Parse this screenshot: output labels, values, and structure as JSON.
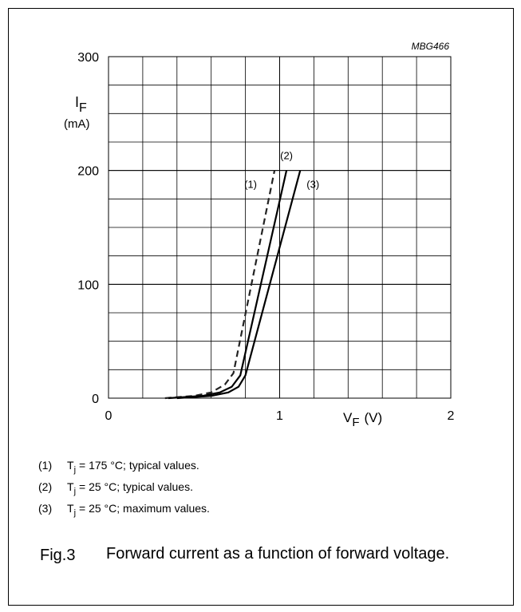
{
  "chart_data": {
    "type": "line",
    "annotation": "MBG466",
    "ylabel": "I",
    "ylabel_sub": "F",
    "ylabel_unit": "(mA)",
    "xlabel": "V",
    "xlabel_sub": "F",
    "xlabel_unit": "(V)",
    "xlim": [
      0,
      2
    ],
    "xticks": [
      0,
      1,
      2
    ],
    "ylim": [
      0,
      300
    ],
    "yticks": [
      0,
      100,
      200,
      300
    ],
    "grid": true,
    "series": [
      {
        "name": "(1)",
        "color": "#222222",
        "dashed": true,
        "x": [
          0.33,
          0.5,
          0.6,
          0.68,
          0.73,
          0.97
        ],
        "values": [
          0,
          2,
          5,
          12,
          22,
          200
        ]
      },
      {
        "name": "(2)",
        "color": "#000000",
        "dashed": false,
        "x": [
          0.35,
          0.55,
          0.65,
          0.72,
          0.77,
          1.04
        ],
        "values": [
          0,
          2,
          5,
          10,
          20,
          200
        ]
      },
      {
        "name": "(3)",
        "color": "#000000",
        "dashed": false,
        "x": [
          0.4,
          0.6,
          0.7,
          0.76,
          0.8,
          1.12
        ],
        "values": [
          0,
          2,
          5,
          10,
          20,
          200
        ]
      }
    ]
  },
  "notes": [
    {
      "label": "(1)",
      "symbol": "T",
      "sub": "j",
      "text": "= 175 °C; typical values."
    },
    {
      "label": "(2)",
      "symbol": "T",
      "sub": "j",
      "text": "= 25 °C; typical values."
    },
    {
      "label": "(3)",
      "symbol": "T",
      "sub": "j",
      "text": "= 25 °C; maximum values."
    }
  ],
  "figure_number": "Fig.3",
  "caption": "Forward current as a function of forward voltage."
}
